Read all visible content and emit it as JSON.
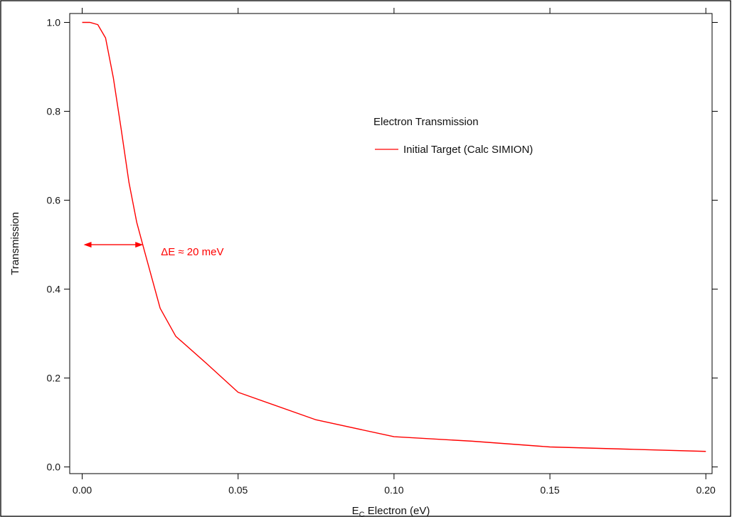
{
  "chart_data": {
    "type": "line",
    "ylabel": "Transmission",
    "xlabel": "Electron (eV)",
    "xlabel_main": "E",
    "xlabel_sub": "C",
    "xlim": [
      -0.004,
      0.202
    ],
    "ylim": [
      -0.015,
      1.02
    ],
    "xticks": [
      0.0,
      0.05,
      0.1,
      0.15,
      0.2
    ],
    "xtick_labels": [
      "0.00",
      "0.05",
      "0.10",
      "0.15",
      "0.20"
    ],
    "yticks": [
      0.0,
      0.2,
      0.4,
      0.6,
      0.8,
      1.0
    ],
    "ytick_labels": [
      "0.0",
      "0.2",
      "0.4",
      "0.6",
      "0.8",
      "1.0"
    ],
    "grid": false,
    "legend_position": "top-right",
    "legend_title": "Electron Transmission",
    "series": [
      {
        "name": "Initial Target (Calc SIMION)",
        "color": "#ff0000",
        "x": [
          0.0,
          0.0025,
          0.005,
          0.0075,
          0.01,
          0.0125,
          0.015,
          0.0175,
          0.02,
          0.025,
          0.03,
          0.04,
          0.05,
          0.075,
          0.1,
          0.125,
          0.15,
          0.175,
          0.2
        ],
        "y": [
          1.0,
          1.0,
          0.995,
          0.965,
          0.875,
          0.76,
          0.64,
          0.55,
          0.485,
          0.357,
          0.294,
          0.232,
          0.168,
          0.106,
          0.068,
          0.058,
          0.045,
          0.04,
          0.035
        ]
      }
    ],
    "annotation": {
      "text": "ΔE ≈ 20 meV",
      "color": "#ff0000",
      "arrow_x_start": 0.0,
      "arrow_x_end": 0.02,
      "arrow_y": 0.5
    }
  }
}
